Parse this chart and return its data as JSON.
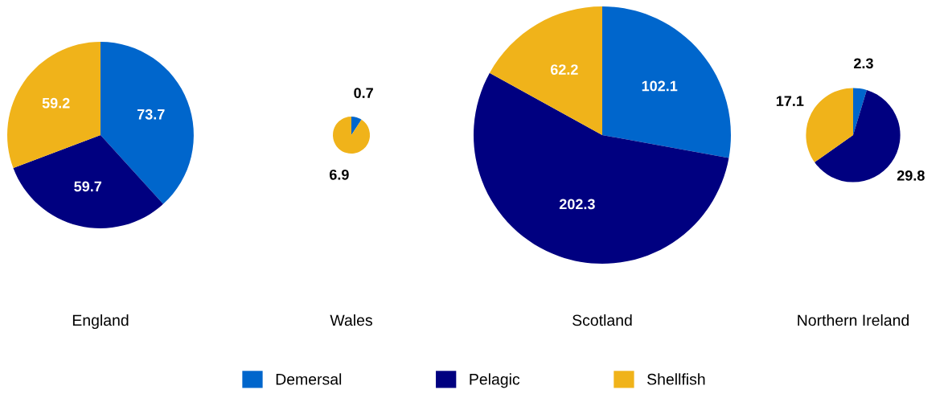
{
  "chart_data": [
    {
      "type": "pie",
      "title": "England",
      "categories": [
        "Demersal",
        "Pelagic",
        "Shellfish"
      ],
      "values": [
        73.7,
        59.7,
        59.2
      ],
      "colors": [
        "#0066cc",
        "#000080",
        "#f0b31a"
      ],
      "data_labels": true,
      "legend": "bottom"
    },
    {
      "type": "pie",
      "title": "Wales",
      "categories": [
        null,
        null
      ],
      "values": [
        0.7,
        6.9
      ],
      "colors": [
        "#0066cc",
        "#f0b31a"
      ],
      "data_labels": true
    },
    {
      "type": "pie",
      "title": "Scotland",
      "categories": [
        null,
        null,
        null
      ],
      "values": [
        102.1,
        202.3,
        62.2
      ],
      "colors": [
        "#0066cc",
        "#000080",
        "#f0b31a"
      ],
      "data_labels": true
    },
    {
      "type": "pie",
      "title": "Northern Ireland",
      "categories": [
        null,
        null,
        null
      ],
      "values": [
        2.3,
        29.8,
        17.1
      ],
      "colors": [
        "#0066cc",
        "#000080",
        "#f0b31a"
      ],
      "data_labels": true
    }
  ]
}
